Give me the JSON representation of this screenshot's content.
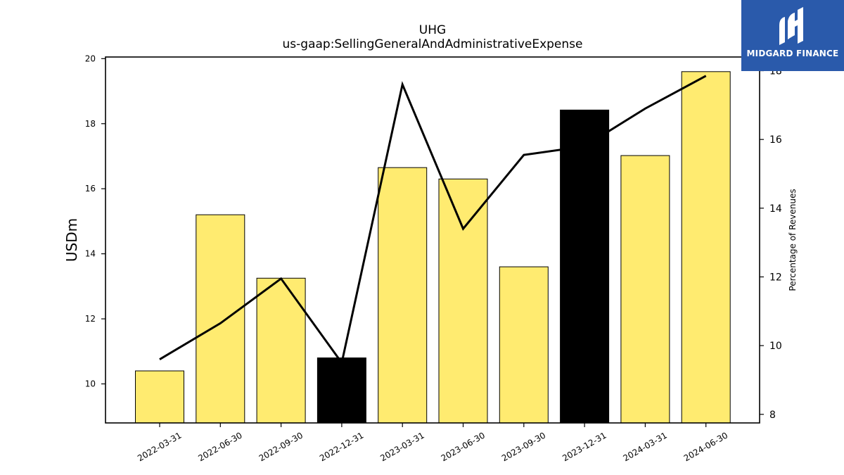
{
  "chart_data": {
    "type": "bar",
    "title": "UHG",
    "subtitle": "us-gaap:SellingGeneralAndAdministrativeExpense",
    "ylabel": "USDm",
    "ylabel_right": "Percentage of Revenues",
    "categories": [
      "2022-03-31",
      "2022-06-30",
      "2022-09-30",
      "2022-12-31",
      "2023-03-31",
      "2023-06-30",
      "2023-09-30",
      "2023-12-31",
      "2024-03-31",
      "2024-06-30"
    ],
    "series": [
      {
        "type": "bar",
        "axis": "left",
        "values": [
          10.4,
          15.2,
          13.25,
          10.8,
          16.65,
          16.3,
          13.6,
          18.42,
          17.02,
          19.6
        ],
        "colors": [
          "#ffeb70",
          "#ffeb70",
          "#ffeb70",
          "#000000",
          "#ffeb70",
          "#ffeb70",
          "#ffeb70",
          "#000000",
          "#ffeb70",
          "#ffeb70"
        ]
      },
      {
        "type": "line",
        "axis": "right",
        "color": "#000000",
        "values": [
          9.6,
          10.65,
          11.95,
          9.5,
          17.6,
          13.4,
          15.55,
          15.8,
          16.9,
          17.85
        ]
      }
    ],
    "ylim": [
      8.8,
      20.05
    ],
    "ylim_right": [
      7.75,
      18.4
    ],
    "yticks": [
      10,
      12,
      14,
      16,
      18,
      20
    ],
    "yticks_right": [
      8,
      10,
      12,
      14,
      16,
      18
    ],
    "grid": false
  },
  "logo": {
    "text": "MIDGARD FINANCE",
    "background": "#2a5aab"
  }
}
